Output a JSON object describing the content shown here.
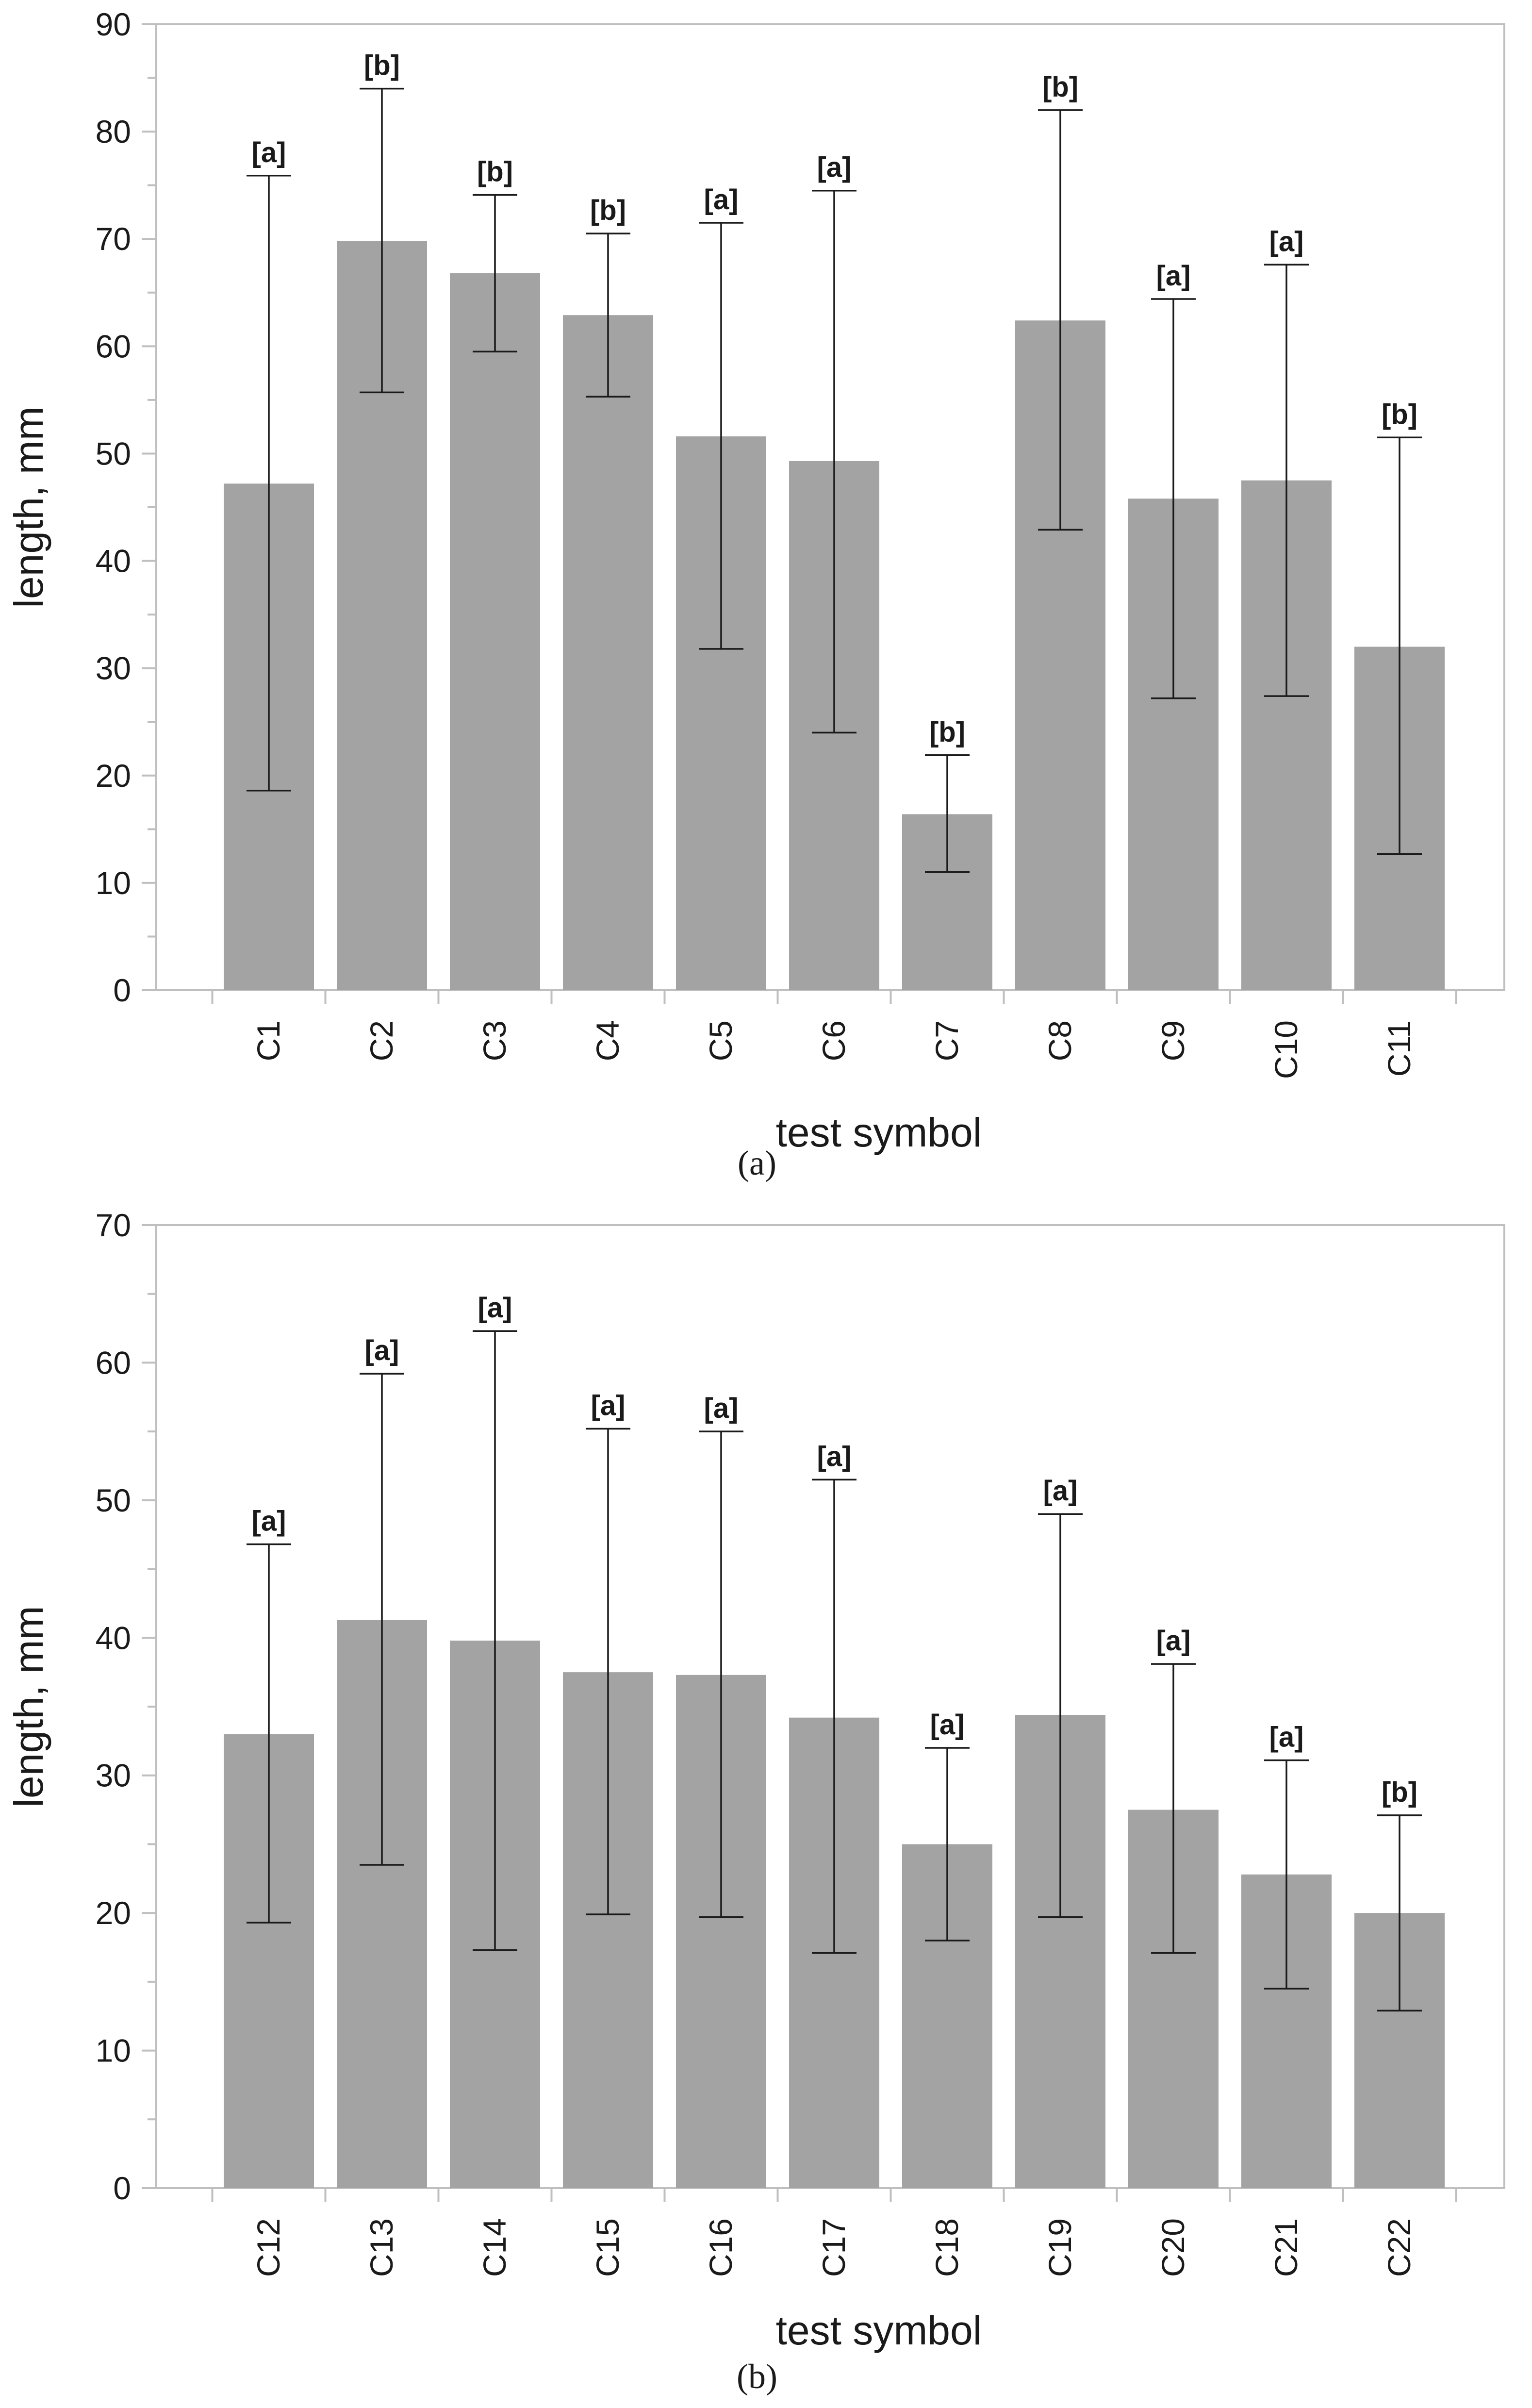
{
  "colors": {
    "bar": "#a3a3a3",
    "axis": "#bfbfbf",
    "ink": "#1a1a1a"
  },
  "chart_data": [
    {
      "type": "bar",
      "panel_label": "a",
      "panel_label_display": "(a)",
      "title": "",
      "xlabel": "test symbol",
      "ylabel": "length, mm",
      "ylim": [
        0,
        90
      ],
      "ytick_step": 10,
      "yticks": [
        "0",
        "10",
        "20",
        "30",
        "40",
        "50",
        "60",
        "70",
        "80",
        "90"
      ],
      "categories": [
        "C1",
        "C2",
        "C3",
        "C4",
        "C5",
        "C6",
        "C7",
        "C8",
        "C9",
        "C10",
        "C11"
      ],
      "values": [
        47.2,
        69.8,
        66.8,
        62.9,
        51.6,
        49.3,
        16.4,
        62.4,
        45.8,
        47.5,
        32.0
      ],
      "error_low": [
        18.6,
        55.7,
        59.5,
        55.3,
        31.8,
        24.0,
        11.0,
        42.9,
        27.2,
        27.4,
        12.7
      ],
      "error_high": [
        75.9,
        84.0,
        74.1,
        70.5,
        71.5,
        74.5,
        21.9,
        82.0,
        64.4,
        67.6,
        51.5
      ],
      "significance": [
        "[a]",
        "[b]",
        "[b]",
        "[b]",
        "[a]",
        "[a]",
        "[b]",
        "[b]",
        "[a]",
        "[a]",
        "[b]"
      ],
      "grid": false,
      "legend": "none"
    },
    {
      "type": "bar",
      "panel_label": "b",
      "panel_label_display": "(b)",
      "title": "",
      "xlabel": "test symbol",
      "ylabel": "length, mm",
      "ylim": [
        0,
        70
      ],
      "ytick_step": 10,
      "yticks": [
        "0",
        "10",
        "20",
        "30",
        "40",
        "50",
        "60",
        "70"
      ],
      "categories": [
        "C12",
        "C13",
        "C14",
        "C15",
        "C16",
        "C17",
        "C18",
        "C19",
        "C20",
        "C21",
        "C22"
      ],
      "values": [
        33.0,
        41.3,
        39.8,
        37.5,
        37.3,
        34.2,
        25.0,
        34.4,
        27.5,
        22.8,
        20.0
      ],
      "error_low": [
        19.3,
        23.5,
        17.3,
        19.9,
        19.7,
        17.1,
        18.0,
        19.7,
        17.1,
        14.5,
        12.9
      ],
      "error_high": [
        46.8,
        59.2,
        62.3,
        55.2,
        55.0,
        51.5,
        32.0,
        49.0,
        38.1,
        31.1,
        27.1
      ],
      "significance": [
        "[a]",
        "[a]",
        "[a]",
        "[a]",
        "[a]",
        "[a]",
        "[a]",
        "[a]",
        "[a]",
        "[a]",
        "[b]"
      ],
      "grid": false,
      "legend": "none"
    }
  ]
}
